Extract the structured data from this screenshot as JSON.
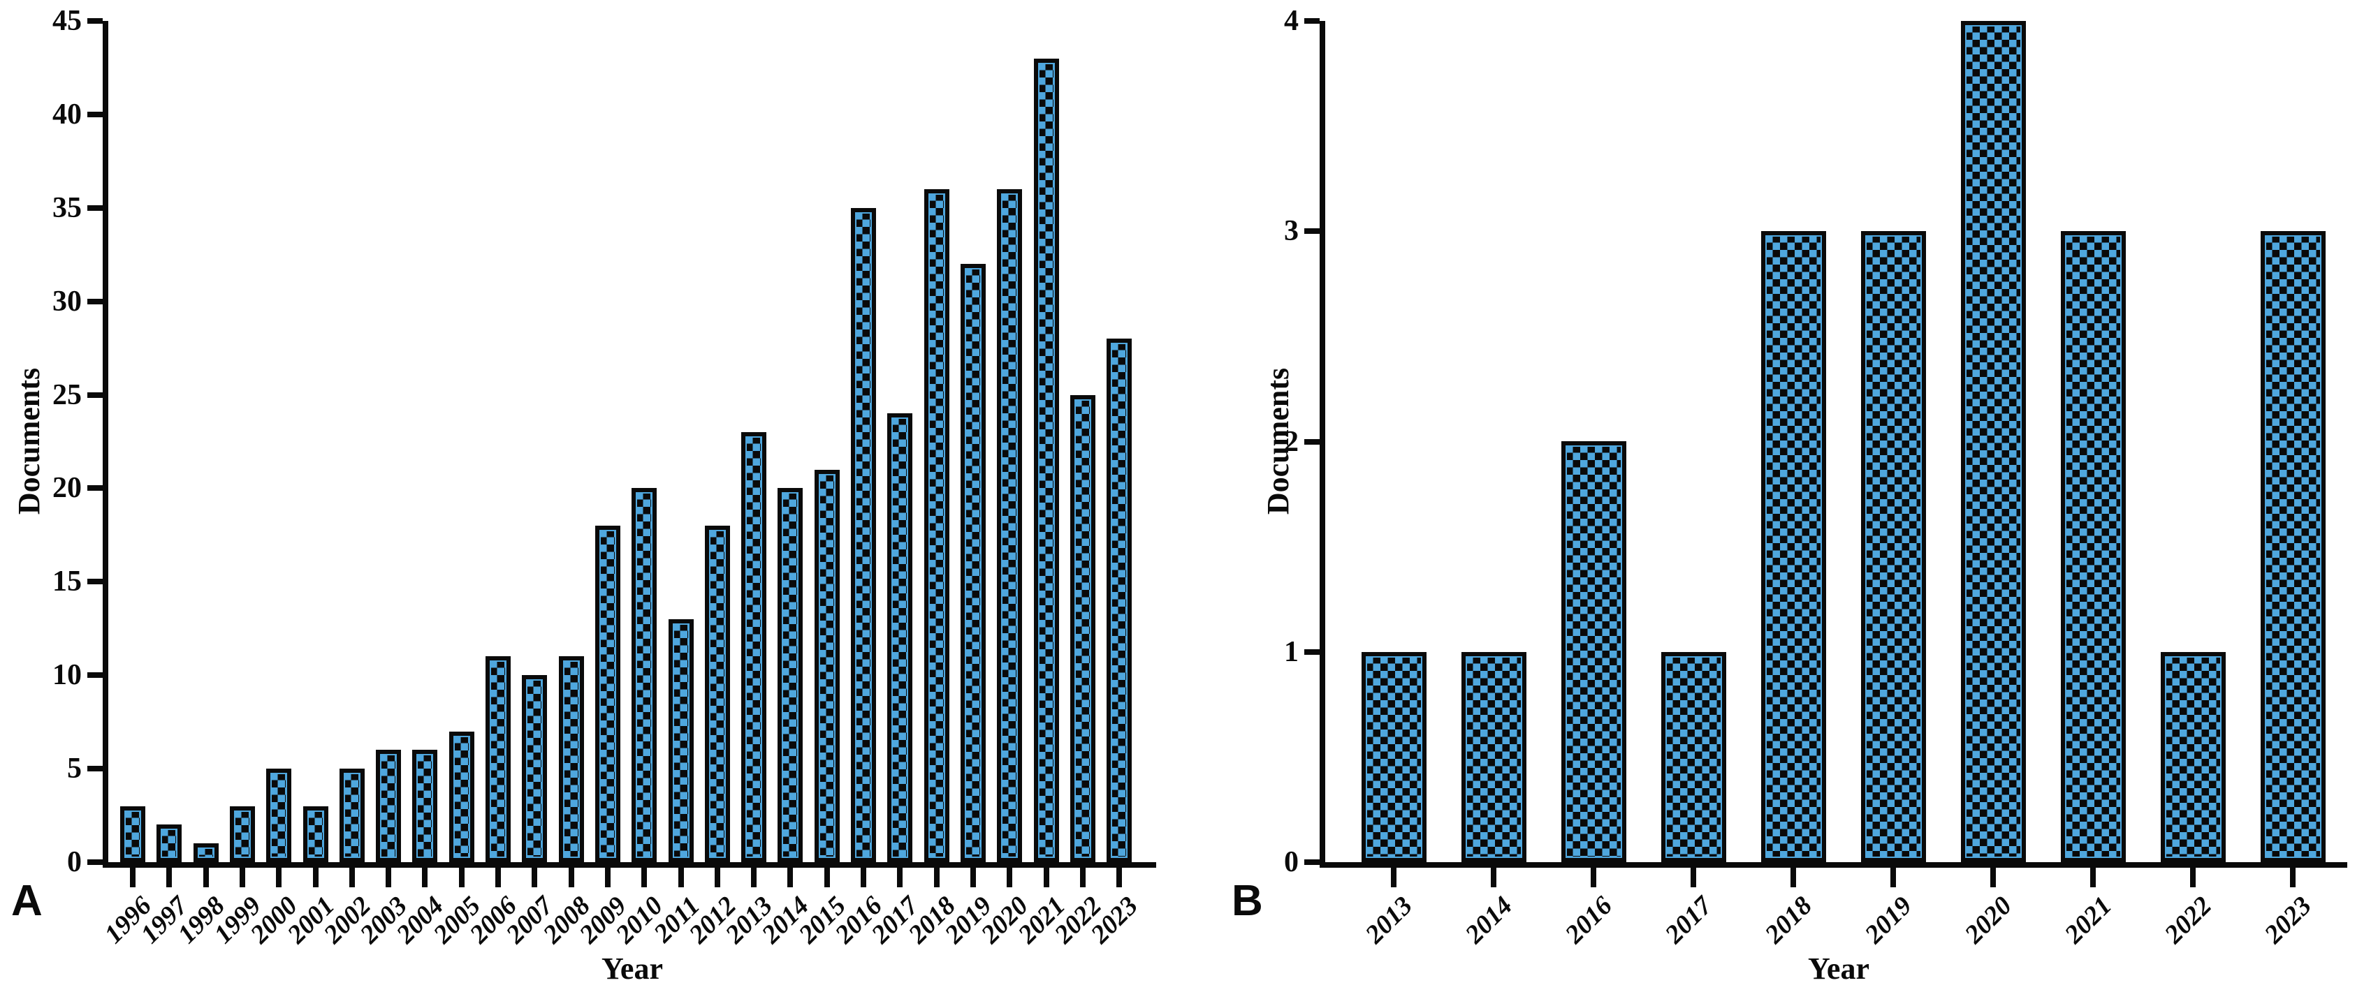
{
  "figure": {
    "background": "#ffffff",
    "panels": [
      {
        "label": "A",
        "ylabel": "Documents",
        "xlabel": "Year"
      },
      {
        "label": "B",
        "ylabel": "Documents",
        "xlabel": "Year"
      }
    ]
  },
  "chart_data": [
    {
      "type": "bar",
      "panel": "A",
      "title": "",
      "xlabel": "Year",
      "ylabel": "Documents",
      "categories": [
        "1996",
        "1997",
        "1998",
        "1999",
        "2000",
        "2001",
        "2002",
        "2003",
        "2004",
        "2005",
        "2006",
        "2007",
        "2008",
        "2009",
        "2010",
        "2011",
        "2012",
        "2013",
        "2014",
        "2015",
        "2016",
        "2017",
        "2018",
        "2019",
        "2020",
        "2021",
        "2022",
        "2023"
      ],
      "values": [
        3,
        2,
        1,
        3,
        5,
        3,
        5,
        6,
        6,
        7,
        11,
        10,
        11,
        18,
        20,
        13,
        18,
        23,
        20,
        21,
        35,
        24,
        36,
        32,
        36,
        43,
        25,
        28
      ],
      "ylim": [
        0,
        45
      ],
      "yticks": [
        0,
        5,
        10,
        15,
        20,
        25,
        30,
        35,
        40,
        45
      ],
      "grid": false,
      "legend": "none",
      "bar_fill_color": "#4fa7de",
      "bar_border_color": "#0a0a0a",
      "bar_pattern": "checkerboard",
      "xtick_label_style": "bold italic rotated -45deg"
    },
    {
      "type": "bar",
      "panel": "B",
      "title": "",
      "xlabel": "Year",
      "ylabel": "Documents",
      "categories": [
        "2013",
        "2014",
        "2016",
        "2017",
        "2018",
        "2019",
        "2020",
        "2021",
        "2022",
        "2023"
      ],
      "values": [
        1,
        1,
        2,
        1,
        3,
        3,
        4,
        3,
        1,
        3
      ],
      "ylim": [
        0,
        4
      ],
      "yticks": [
        0,
        1,
        2,
        3,
        4
      ],
      "grid": false,
      "legend": "none",
      "bar_fill_color": "#4fa7de",
      "bar_border_color": "#0a0a0a",
      "bar_pattern": "checkerboard",
      "xtick_label_style": "bold italic rotated -45deg"
    }
  ]
}
